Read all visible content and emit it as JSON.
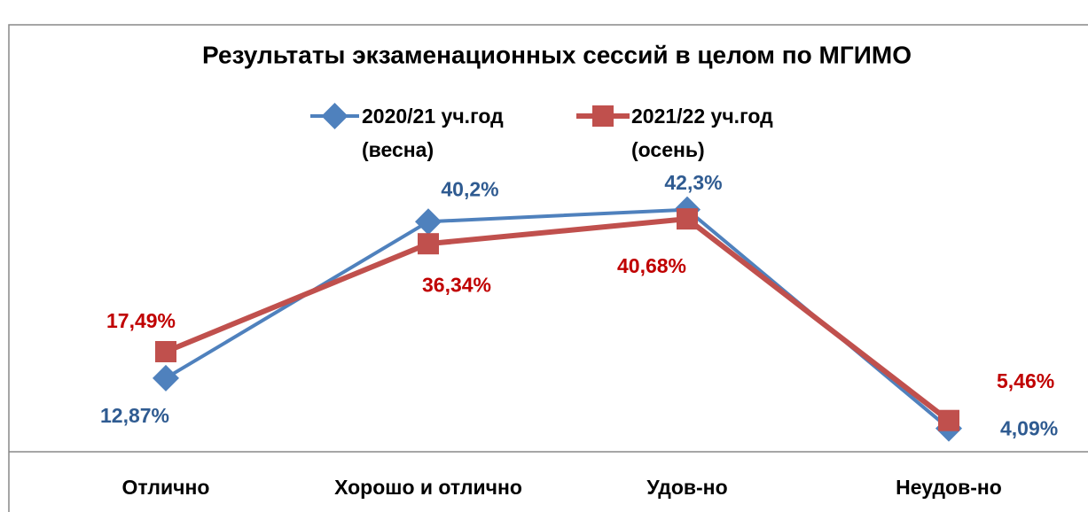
{
  "chart_data": {
    "type": "line",
    "title": "Результаты экзаменационных сессий в целом по МГИМО",
    "categories": [
      "Отлично",
      "Хорошо и отлично",
      "Удов-но",
      "Неудов-но"
    ],
    "series": [
      {
        "name": "2020/21 уч.год (весна)",
        "color": "#4f81bd",
        "marker": "diamond",
        "values": [
          12.87,
          40.2,
          42.3,
          4.09
        ],
        "value_labels": [
          "12,87%",
          "40,2%",
          "42,3%",
          "4,09%"
        ]
      },
      {
        "name": "2021/22 уч.год (осень)",
        "color": "#c0504d",
        "marker": "square",
        "values": [
          17.49,
          36.34,
          40.68,
          5.46
        ],
        "value_labels": [
          "17,49%",
          "36,34%",
          "40,68%",
          "5,46%"
        ]
      }
    ],
    "ylim": [
      0,
      65
    ]
  }
}
